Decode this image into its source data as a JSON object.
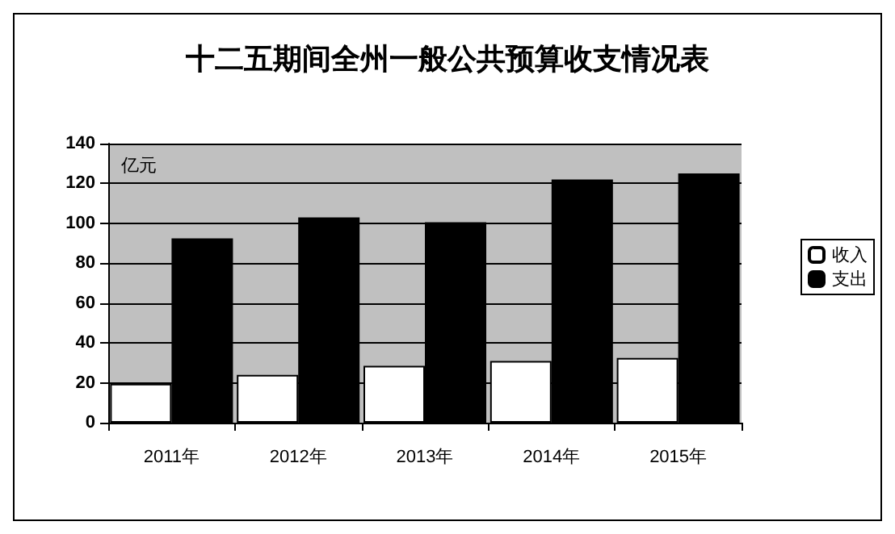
{
  "chart_data": {
    "type": "bar",
    "title": "十二五期间全州一般公共预算收支情况表",
    "ylabel": "亿元",
    "categories": [
      "2011年",
      "2012年",
      "2013年",
      "2014年",
      "2015年"
    ],
    "series": [
      {
        "name": "收入",
        "color": "#ffffff",
        "values": [
          19.5,
          24,
          28.5,
          31,
          32.5
        ]
      },
      {
        "name": "支出",
        "color": "#000000",
        "values": [
          92.5,
          103,
          100.5,
          122,
          125
        ]
      }
    ],
    "ylim": [
      0,
      140
    ],
    "yticks": [
      0,
      20,
      40,
      60,
      80,
      100,
      120,
      140
    ],
    "grid": "y",
    "legend": "right"
  }
}
